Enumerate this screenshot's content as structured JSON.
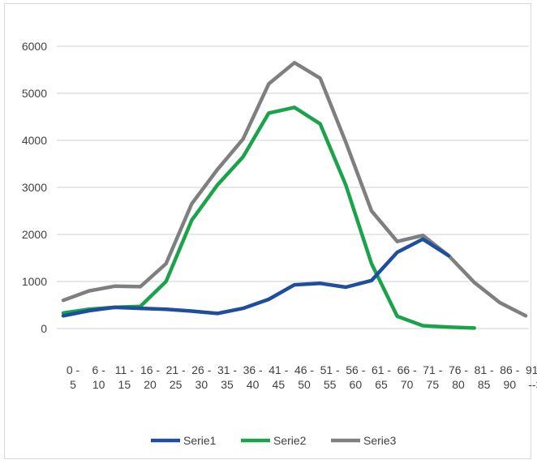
{
  "chart_data": {
    "type": "line",
    "title": "",
    "xlabel": "",
    "ylabel": "",
    "ylim": [
      0,
      6000
    ],
    "yticks": [
      0,
      1000,
      2000,
      3000,
      4000,
      5000,
      6000
    ],
    "grid": true,
    "legend_position": "bottom",
    "categories": [
      [
        "0 -",
        "5"
      ],
      [
        "6 -",
        "10"
      ],
      [
        "11 -",
        "15"
      ],
      [
        "16 -",
        "20"
      ],
      [
        "21 -",
        "25"
      ],
      [
        "26 -",
        "30"
      ],
      [
        "31 -",
        "35"
      ],
      [
        "36 -",
        "40"
      ],
      [
        "41 -",
        "45"
      ],
      [
        "46 -",
        "50"
      ],
      [
        "51 -",
        "55"
      ],
      [
        "56 -",
        "60"
      ],
      [
        "61 -",
        "65"
      ],
      [
        "66 -",
        "70"
      ],
      [
        "71 -",
        "75"
      ],
      [
        "76 -",
        "80"
      ],
      [
        "81 -",
        "85"
      ],
      [
        "86 -",
        "90"
      ],
      [
        "91 -",
        "-->"
      ]
    ],
    "series": [
      {
        "name": "Serie1",
        "color": "#1f4e9c",
        "values": [
          270,
          380,
          450,
          430,
          410,
          370,
          320,
          430,
          620,
          930,
          960,
          880,
          1020,
          1620,
          1900,
          1550,
          null,
          null,
          null
        ]
      },
      {
        "name": "Serie2",
        "color": "#1aa34a",
        "values": [
          330,
          410,
          450,
          470,
          1000,
          2300,
          3050,
          3650,
          4580,
          4700,
          4350,
          3050,
          1380,
          260,
          60,
          30,
          10,
          null,
          null
        ]
      },
      {
        "name": "Serie3",
        "color": "#7f7f7f",
        "values": [
          600,
          800,
          900,
          890,
          1380,
          2650,
          3380,
          4030,
          5200,
          5650,
          5320,
          3960,
          2500,
          1850,
          1980,
          1550,
          980,
          550,
          270
        ]
      }
    ]
  }
}
